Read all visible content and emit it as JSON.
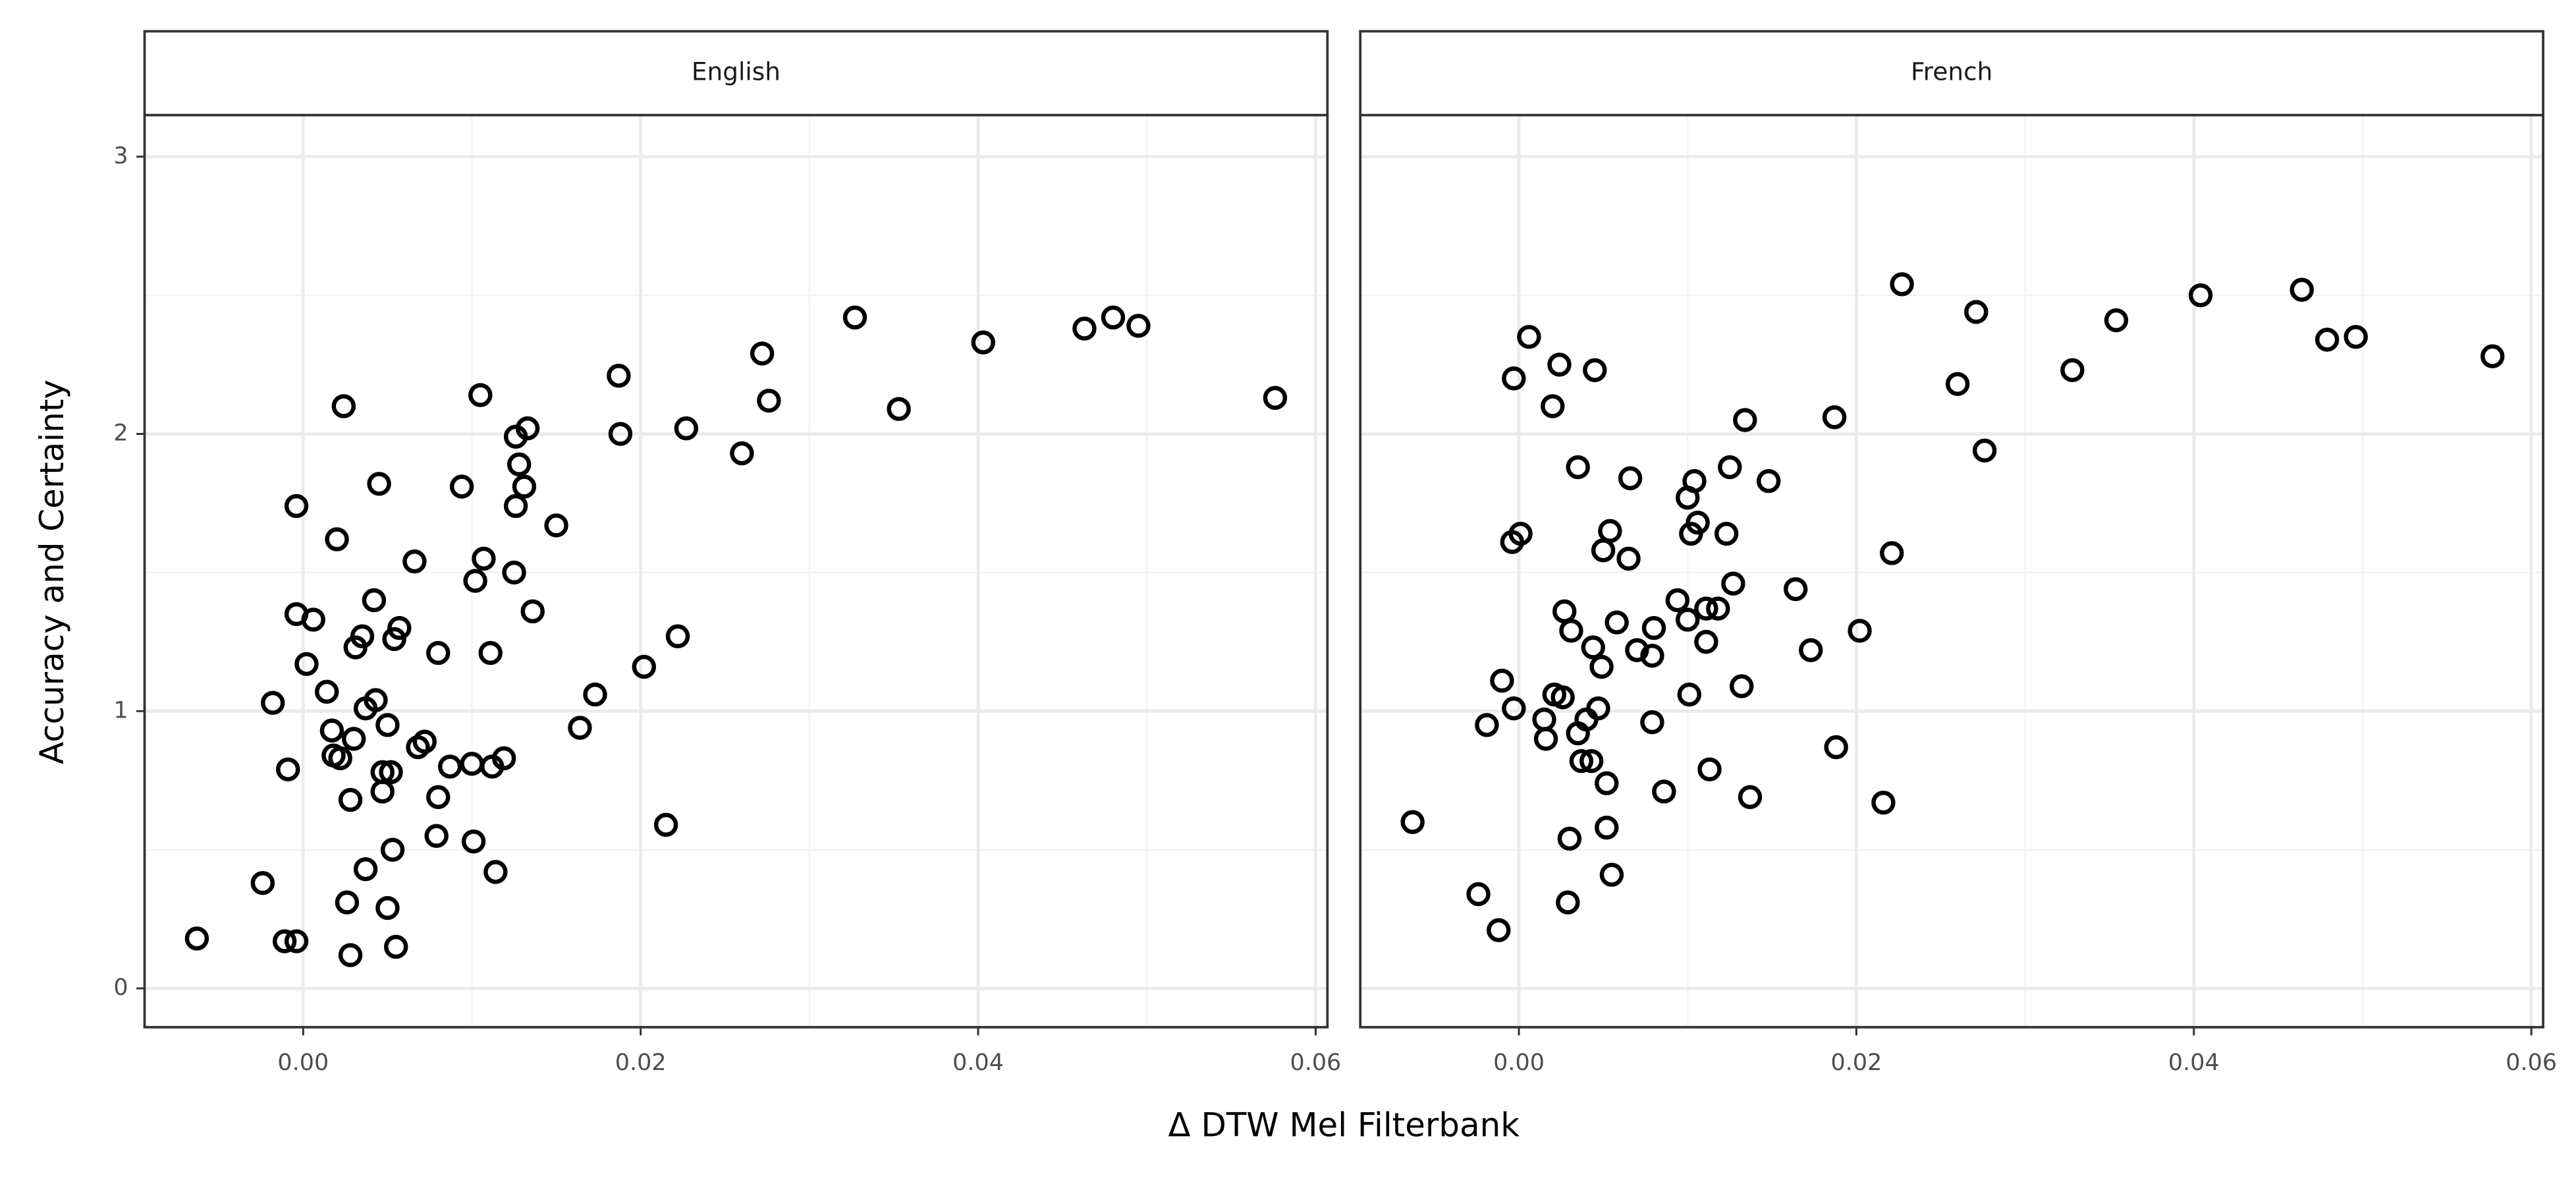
{
  "x_label": "Δ DTW Mel Filterbank",
  "y_label": "Accuracy and Certainty",
  "chart_data": [
    {
      "type": "scatter",
      "title": "English",
      "grid": true,
      "color": "#000000",
      "xlim": [
        -0.0094,
        0.0607
      ],
      "ylim": [
        -0.14,
        3.15
      ],
      "xticks": [
        {
          "value": 0,
          "label": "0.00"
        },
        {
          "value": 0.02,
          "label": "0.02"
        },
        {
          "value": 0.04,
          "label": "0.04"
        },
        {
          "value": 0.06,
          "label": "0.06"
        }
      ],
      "yticks": [
        0,
        1,
        2,
        3
      ],
      "x": [
        -0.0063,
        -0.0024,
        -0.0018,
        -0.0011,
        -0.0009,
        -0.0004,
        -0.0004,
        -0.0004,
        0.0002,
        0.0006,
        0.0014,
        0.0017,
        0.0018,
        0.002,
        0.0022,
        0.0024,
        0.0026,
        0.0028,
        0.0028,
        0.003,
        0.0031,
        0.0035,
        0.0037,
        0.0037,
        0.0042,
        0.0043,
        0.0045,
        0.0047,
        0.0047,
        0.005,
        0.005,
        0.0052,
        0.0053,
        0.0054,
        0.0055,
        0.0057,
        0.0066,
        0.0068,
        0.0072,
        0.008,
        0.008,
        0.0079,
        0.0087,
        0.0094,
        0.01,
        0.0101,
        0.0102,
        0.0105,
        0.0107,
        0.0111,
        0.0112,
        0.0114,
        0.0119,
        0.0125,
        0.0126,
        0.0126,
        0.0128,
        0.0131,
        0.0133,
        0.0136,
        0.015,
        0.0164,
        0.0173,
        0.0187,
        0.0188,
        0.0202,
        0.0215,
        0.0222,
        0.0227,
        0.026,
        0.0272,
        0.0276,
        0.0327,
        0.0353,
        0.0403,
        0.0463,
        0.048,
        0.0495,
        0.0576
      ],
      "y": [
        0.18,
        0.38,
        1.03,
        0.17,
        0.79,
        1.74,
        0.17,
        1.35,
        1.17,
        1.33,
        1.07,
        0.93,
        0.84,
        1.62,
        0.83,
        2.1,
        0.31,
        0.68,
        0.12,
        0.9,
        1.23,
        1.27,
        1.01,
        0.43,
        1.4,
        1.04,
        1.82,
        0.78,
        0.71,
        0.95,
        0.29,
        0.78,
        0.5,
        1.26,
        0.15,
        1.3,
        1.54,
        0.87,
        0.89,
        0.69,
        1.21,
        0.55,
        0.8,
        1.81,
        0.81,
        0.53,
        1.47,
        2.14,
        1.55,
        1.21,
        0.8,
        0.42,
        0.83,
        1.5,
        1.74,
        1.99,
        1.89,
        1.81,
        2.02,
        1.36,
        1.67,
        0.94,
        1.06,
        2.21,
        2.0,
        1.16,
        0.59,
        1.27,
        2.02,
        1.93,
        2.29,
        2.12,
        2.42,
        2.09,
        2.33,
        2.38,
        2.42,
        2.39,
        2.13
      ]
    },
    {
      "type": "scatter",
      "title": "French",
      "grid": true,
      "color": "#000000",
      "xlim": [
        -0.0094,
        0.0607
      ],
      "ylim": [
        -0.14,
        3.15
      ],
      "xticks": [
        {
          "value": 0,
          "label": "0.00"
        },
        {
          "value": 0.02,
          "label": "0.02"
        },
        {
          "value": 0.04,
          "label": "0.04"
        },
        {
          "value": 0.06,
          "label": "0.06"
        }
      ],
      "yticks": [
        0,
        1,
        2,
        3
      ],
      "x": [
        -0.0063,
        -0.0024,
        -0.0019,
        -0.0012,
        -0.001,
        -0.0004,
        -0.0003,
        -0.0003,
        0.0001,
        0.0006,
        0.0015,
        0.0016,
        0.002,
        0.0021,
        0.0024,
        0.0026,
        0.0027,
        0.0029,
        0.003,
        0.0031,
        0.0035,
        0.0035,
        0.0037,
        0.004,
        0.0043,
        0.0044,
        0.0045,
        0.0047,
        0.0049,
        0.005,
        0.0052,
        0.0052,
        0.0054,
        0.0055,
        0.0058,
        0.0065,
        0.0066,
        0.007,
        0.0079,
        0.008,
        0.0079,
        0.0086,
        0.0094,
        0.01,
        0.01,
        0.0101,
        0.0102,
        0.0104,
        0.0106,
        0.0111,
        0.0111,
        0.0113,
        0.0118,
        0.0123,
        0.0125,
        0.0127,
        0.0132,
        0.0134,
        0.0137,
        0.0148,
        0.0164,
        0.0173,
        0.0187,
        0.0188,
        0.0202,
        0.0216,
        0.0221,
        0.0227,
        0.026,
        0.0271,
        0.0276,
        0.0328,
        0.0354,
        0.0404,
        0.0464,
        0.0479,
        0.0496,
        0.0577
      ],
      "y": [
        0.6,
        0.34,
        0.95,
        0.21,
        1.11,
        1.61,
        2.2,
        1.01,
        1.64,
        2.35,
        0.97,
        0.9,
        2.1,
        1.06,
        2.25,
        1.05,
        1.36,
        0.31,
        0.54,
        1.29,
        1.88,
        0.92,
        0.82,
        0.97,
        0.82,
        1.23,
        2.23,
        1.01,
        1.16,
        1.58,
        0.74,
        0.58,
        1.65,
        0.41,
        1.32,
        1.55,
        1.84,
        1.22,
        1.2,
        1.3,
        0.96,
        0.71,
        1.4,
        1.77,
        1.33,
        1.06,
        1.64,
        1.83,
        1.68,
        1.37,
        1.25,
        0.79,
        1.37,
        1.64,
        1.88,
        1.46,
        1.09,
        2.05,
        0.69,
        1.83,
        1.44,
        1.22,
        2.06,
        0.87,
        1.29,
        0.67,
        1.57,
        2.54,
        2.18,
        2.44,
        1.94,
        2.23,
        2.41,
        2.5,
        2.52,
        2.34,
        2.35,
        2.28
      ]
    }
  ]
}
